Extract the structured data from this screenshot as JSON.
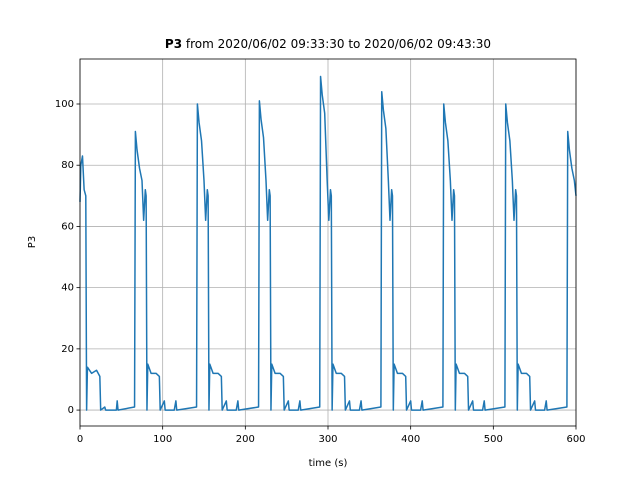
{
  "chart_data": {
    "type": "line",
    "title_bold": "P3",
    "title_rest": " from 2020/06/02 09:33:30 to 2020/06/02 09:43:30",
    "xlabel": "time (s)",
    "ylabel": "P3",
    "color": "#1f77b4",
    "grid": true,
    "xlim": [
      0,
      600
    ],
    "xticks": [
      0,
      100,
      200,
      300,
      400,
      500,
      600
    ],
    "ylim": [
      -5.2,
      114.7
    ],
    "yticks": [
      0,
      20,
      40,
      60,
      80,
      100
    ],
    "x": [
      0,
      1,
      3,
      5,
      7,
      8,
      9,
      14,
      20,
      24,
      25,
      30,
      31,
      44,
      45,
      46,
      66,
      67,
      69,
      72,
      75,
      77,
      79,
      80,
      81,
      82,
      86,
      92,
      96,
      97,
      102,
      103,
      114,
      116,
      117,
      141,
      142,
      144,
      147,
      150,
      152,
      154,
      155,
      156,
      157,
      161,
      167,
      171,
      172,
      177,
      178,
      189,
      191,
      192,
      216,
      217,
      219,
      222,
      225,
      227,
      229,
      230,
      231,
      232,
      236,
      242,
      246,
      247,
      252,
      253,
      264,
      266,
      267,
      290,
      291,
      293,
      296,
      299,
      301,
      303,
      304,
      305,
      306,
      310,
      316,
      320,
      321,
      326,
      327,
      338,
      340,
      341,
      364,
      365,
      367,
      370,
      373,
      375,
      377,
      378,
      379,
      380,
      384,
      390,
      394,
      395,
      400,
      401,
      412,
      414,
      415,
      439,
      440,
      442,
      445,
      448,
      450,
      452,
      453,
      454,
      455,
      459,
      465,
      469,
      470,
      475,
      476,
      487,
      489,
      490,
      514,
      515,
      517,
      520,
      523,
      525,
      527,
      528,
      529,
      530,
      534,
      540,
      544,
      545,
      550,
      551,
      562,
      564,
      565,
      589,
      590,
      592,
      595,
      598,
      600
    ],
    "values": [
      68,
      80,
      83,
      72,
      70,
      0,
      14,
      12,
      13,
      11,
      0,
      1,
      0,
      0,
      3,
      0,
      1,
      91,
      85,
      79,
      75,
      62,
      72,
      70,
      0,
      15,
      12,
      12,
      11,
      0,
      3,
      0,
      0,
      3,
      0,
      1,
      100,
      94,
      88,
      75,
      62,
      72,
      70,
      0,
      15,
      12,
      12,
      11,
      0,
      3,
      0,
      0,
      3,
      0,
      1,
      101,
      95,
      89,
      75,
      62,
      72,
      70,
      0,
      15,
      12,
      12,
      11,
      0,
      3,
      0,
      0,
      3,
      0,
      1,
      109,
      103,
      97,
      75,
      62,
      72,
      70,
      0,
      15,
      12,
      12,
      11,
      0,
      3,
      0,
      0,
      3,
      0,
      1,
      104,
      98,
      92,
      75,
      62,
      72,
      70,
      0,
      15,
      12,
      12,
      11,
      0,
      3,
      0,
      0,
      3,
      0,
      1,
      100,
      94,
      88,
      75,
      62,
      72,
      70,
      0,
      15,
      12,
      12,
      11,
      0,
      3,
      0,
      0,
      3,
      0,
      1,
      100,
      94,
      88,
      75,
      62,
      72,
      70,
      0,
      15,
      12,
      12,
      11,
      0,
      3,
      0,
      0,
      3,
      0,
      1,
      91,
      85,
      79,
      75,
      70
    ]
  }
}
